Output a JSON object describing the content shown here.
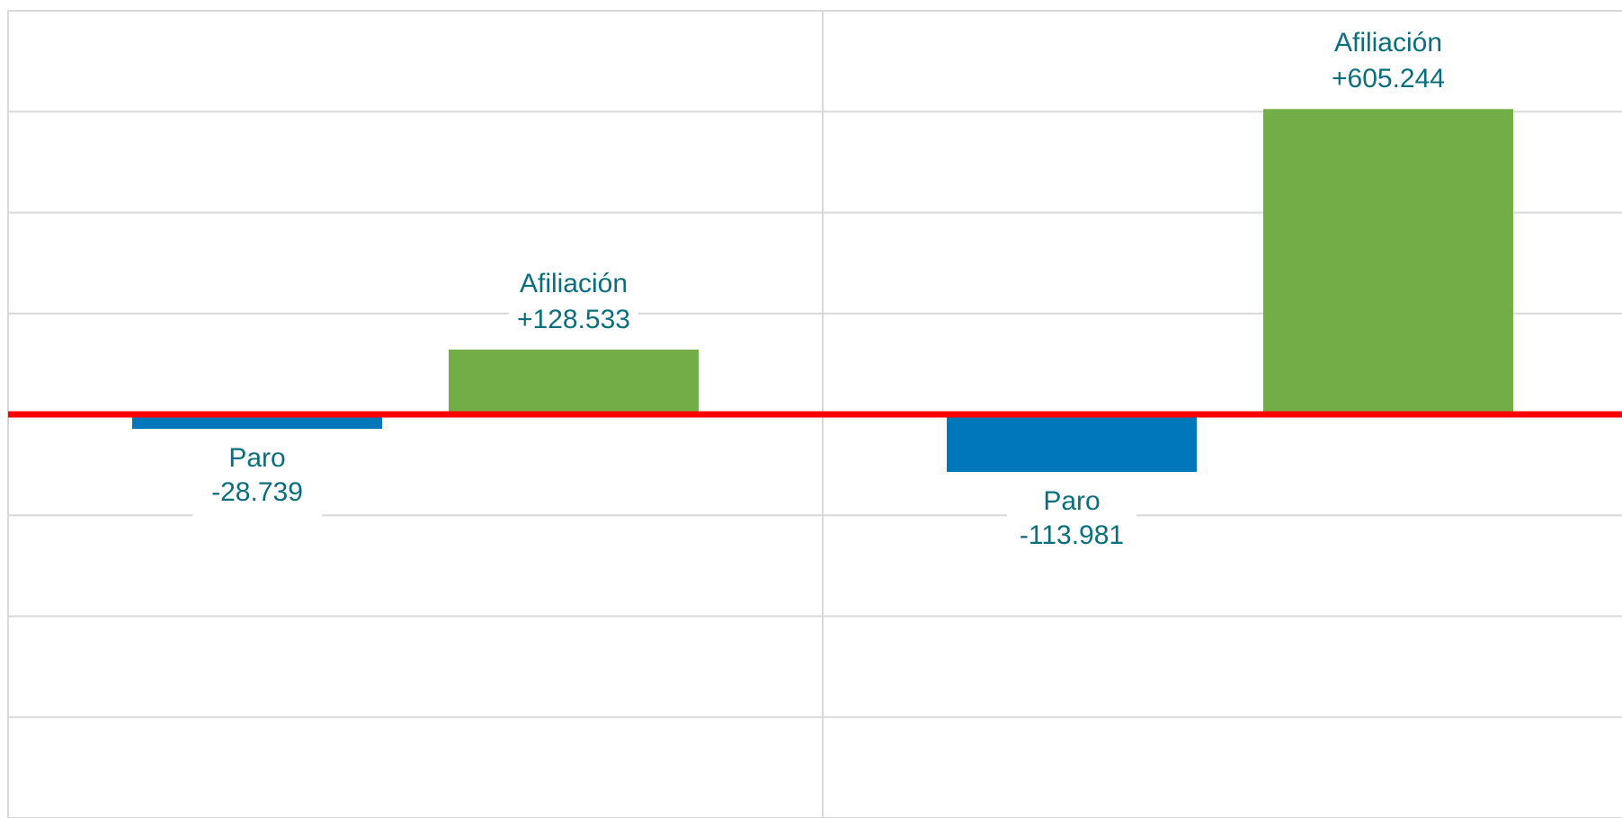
{
  "chart_data": {
    "type": "bar",
    "categories": [
      null,
      null
    ],
    "series": [
      {
        "name": "Paro",
        "color": "#0077bb",
        "values": [
          -28739,
          -113981
        ],
        "value_labels": [
          "-28.739",
          "-113.981"
        ]
      },
      {
        "name": "Afiliación",
        "color": "#72ad48",
        "values": [
          128533,
          605244
        ],
        "value_labels": [
          "+128.533",
          "+605.244"
        ]
      }
    ],
    "ylim": [
      -800000,
      800000
    ],
    "yticks": [
      -800000,
      -600000,
      -400000,
      -200000,
      0,
      200000,
      400000,
      600000,
      800000
    ],
    "grid": true
  }
}
